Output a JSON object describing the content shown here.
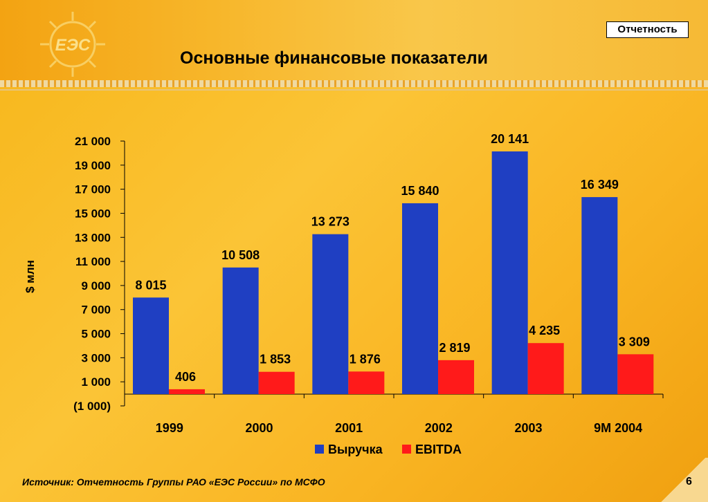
{
  "header": {
    "tag": "Отчетность",
    "title": "Основные финансовые показатели"
  },
  "logo": {
    "text": "ЕЭС"
  },
  "footer": {
    "source": "Источник: Отчетность Группы РАО «ЕЭС России» по МСФО",
    "page": "6"
  },
  "chart_data": {
    "type": "bar",
    "categories": [
      "1999",
      "2000",
      "2001",
      "2002",
      "2003",
      "9M 2004"
    ],
    "series": [
      {
        "name": "Выручка",
        "color": "#1f3fc2",
        "values": [
          8015,
          10508,
          13273,
          15840,
          20141,
          16349
        ],
        "labels": [
          "8 015",
          "10 508",
          "13 273",
          "15 840",
          "20 141",
          "16 349"
        ]
      },
      {
        "name": "EBITDA",
        "color": "#ff1a1a",
        "values": [
          406,
          1853,
          1876,
          2819,
          4235,
          3309
        ],
        "labels": [
          "406",
          "1 853",
          "1 876",
          "2 819",
          "4 235",
          "3 309"
        ]
      }
    ],
    "ylabel": "$ млн",
    "ylim": [
      -1000,
      21000
    ],
    "yticks": [
      21000,
      19000,
      17000,
      15000,
      13000,
      11000,
      9000,
      7000,
      5000,
      3000,
      1000,
      -1000
    ],
    "ytick_labels": [
      "21 000",
      "19 000",
      "17 000",
      "15 000",
      "13 000",
      "11 000",
      "9 000",
      "7 000",
      "5 000",
      "3 000",
      "1 000",
      "(1 000)"
    ],
    "legend": "bottom",
    "grid": false
  }
}
